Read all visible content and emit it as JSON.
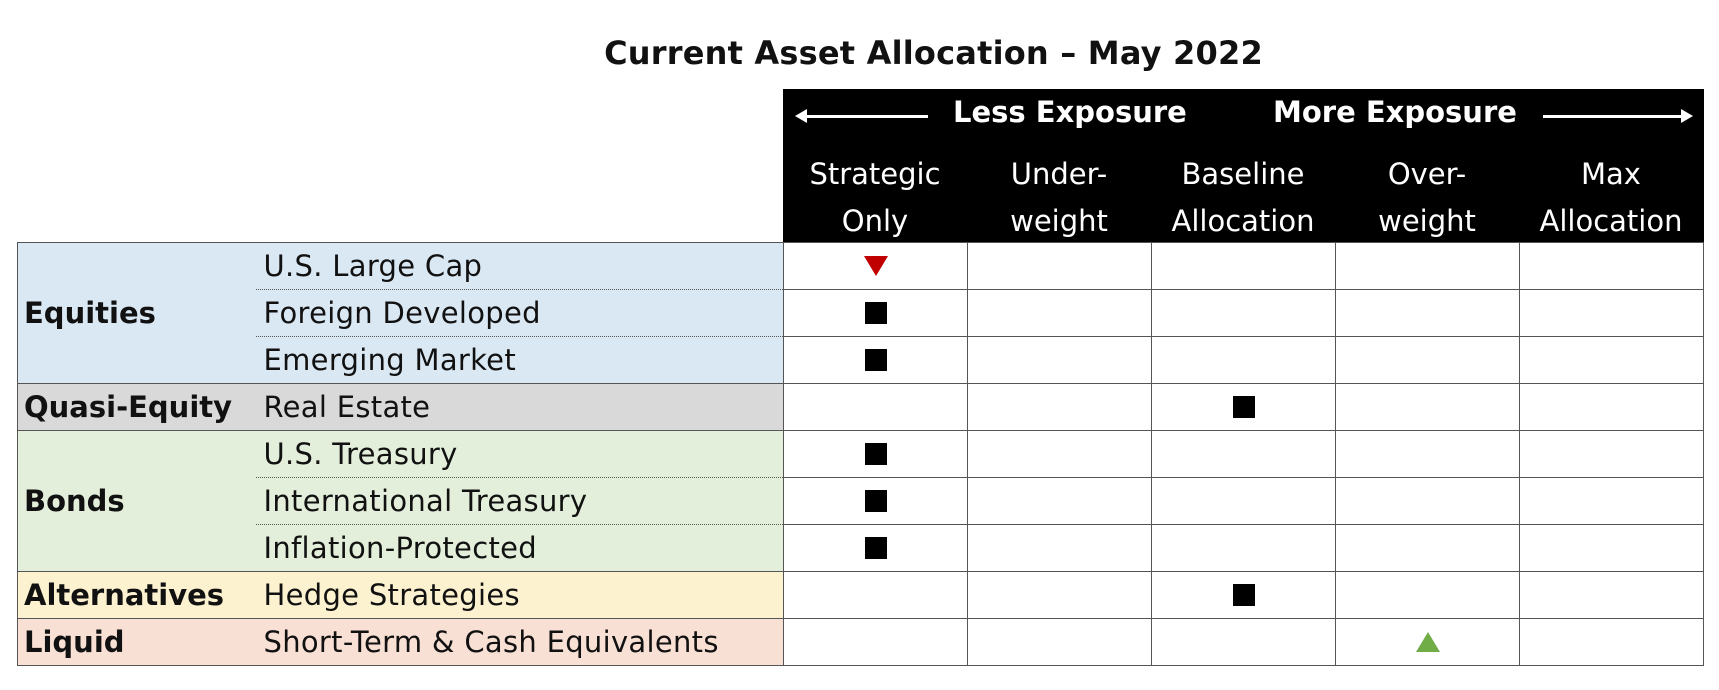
{
  "title": "Current Asset Allocation – May 2022",
  "header": {
    "less_exposure": "Less Exposure",
    "more_exposure": "More Exposure",
    "columns": [
      {
        "line1": "Strategic",
        "line2": "Only"
      },
      {
        "line1": "Under-",
        "line2": "weight"
      },
      {
        "line1": "Baseline",
        "line2": "Allocation"
      },
      {
        "line1": "Over-",
        "line2": "weight"
      },
      {
        "line1": "Max",
        "line2": "Allocation"
      }
    ]
  },
  "colors": {
    "equities_bg": "#dae8f4",
    "quasi_equity_bg": "#d9d9d9",
    "bonds_bg": "#e3efda",
    "alternatives_bg": "#fdf2d0",
    "liquid_bg": "#f9e0d5",
    "decrease_marker": "#c00000",
    "increase_marker": "#70ad47",
    "hold_marker": "#000000"
  },
  "categories": {
    "equities": "Equities",
    "quasi_equity": "Quasi-Equity",
    "bonds": "Bonds",
    "alternatives": "Alternatives",
    "liquid": "Liquid"
  },
  "rows": [
    {
      "category": "Equities",
      "asset": "U.S. Large Cap",
      "position": "Strategic Only",
      "marker": "down-triangle"
    },
    {
      "category": "Equities",
      "asset": "Foreign Developed",
      "position": "Strategic Only",
      "marker": "square"
    },
    {
      "category": "Equities",
      "asset": "Emerging Market",
      "position": "Strategic Only",
      "marker": "square"
    },
    {
      "category": "Quasi-Equity",
      "asset": "Real Estate",
      "position": "Baseline Allocation",
      "marker": "square"
    },
    {
      "category": "Bonds",
      "asset": "U.S. Treasury",
      "position": "Strategic Only",
      "marker": "square"
    },
    {
      "category": "Bonds",
      "asset": "International Treasury",
      "position": "Strategic Only",
      "marker": "square"
    },
    {
      "category": "Bonds",
      "asset": "Inflation-Protected",
      "position": "Strategic Only",
      "marker": "square"
    },
    {
      "category": "Alternatives",
      "asset": "Hedge Strategies",
      "position": "Baseline Allocation",
      "marker": "square"
    },
    {
      "category": "Liquid",
      "asset": "Short-Term & Cash Equivalents",
      "position": "Over-weight",
      "marker": "up-triangle"
    }
  ]
}
